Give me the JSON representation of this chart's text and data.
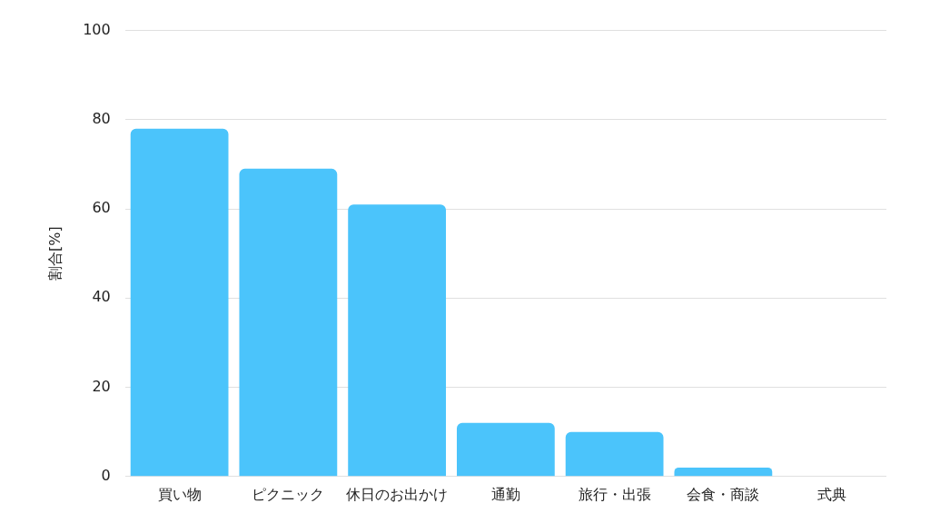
{
  "chart_data": {
    "type": "bar",
    "categories": [
      "買い物",
      "ピクニック",
      "休日のお出かけ",
      "通勤",
      "旅行・出張",
      "会食・商談",
      "式典"
    ],
    "values": [
      78,
      69,
      61,
      12,
      10,
      2,
      0
    ],
    "color": "#4bc4fb",
    "ylabel": "割合[%]",
    "ylim": [
      0,
      100
    ],
    "yticks": [
      0,
      20,
      40,
      60,
      80,
      100
    ],
    "grid": "y"
  }
}
